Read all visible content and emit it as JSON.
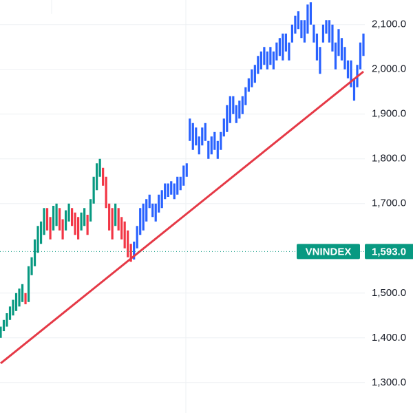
{
  "chart_data": {
    "type": "candlestick",
    "xlim": [
      0,
      117
    ],
    "ylim": [
      1232,
      2155
    ],
    "grid": true,
    "yticks": [
      {
        "value": 1300,
        "label": "1,300.0"
      },
      {
        "value": 1400,
        "label": "1,400.0"
      },
      {
        "value": 1500,
        "label": "1,500.0"
      },
      {
        "value": 1700,
        "label": "1,700.0"
      },
      {
        "value": 1800,
        "label": "1,800.0"
      },
      {
        "value": 1900,
        "label": "1,900.0"
      },
      {
        "value": 2000,
        "label": "2,000.0"
      },
      {
        "value": 2100,
        "label": "2,100.0"
      }
    ],
    "series": [
      {
        "color": "#089981",
        "x": [
          0,
          1,
          2,
          3,
          4,
          5,
          6,
          7,
          9,
          10,
          11,
          12,
          13,
          14,
          17,
          18,
          21,
          22,
          26,
          27,
          29,
          30,
          31,
          32,
          37
        ],
        "low": [
          1400,
          1415,
          1425,
          1440,
          1450,
          1460,
          1470,
          1480,
          1480,
          1540,
          1560,
          1590,
          1610,
          1630,
          1640,
          1650,
          1640,
          1660,
          1640,
          1650,
          1660,
          1700,
          1730,
          1760,
          1650
        ],
        "high": [
          1425,
          1440,
          1455,
          1470,
          1485,
          1500,
          1510,
          1520,
          1560,
          1580,
          1620,
          1650,
          1660,
          1690,
          1695,
          1700,
          1685,
          1700,
          1680,
          1690,
          1710,
          1760,
          1790,
          1800,
          1700
        ]
      },
      {
        "color": "#f23645",
        "x": [
          8,
          15,
          16,
          19,
          20,
          23,
          24,
          25,
          28,
          33,
          34,
          35,
          36,
          38,
          39,
          40,
          41,
          42
        ],
        "low": [
          1475,
          1640,
          1620,
          1640,
          1620,
          1650,
          1630,
          1620,
          1630,
          1740,
          1690,
          1640,
          1620,
          1640,
          1620,
          1600,
          1580,
          1570
        ],
        "high": [
          1500,
          1690,
          1670,
          1690,
          1665,
          1690,
          1680,
          1670,
          1675,
          1780,
          1760,
          1700,
          1690,
          1690,
          1670,
          1660,
          1640,
          1610
        ]
      },
      {
        "color": "#2962ff",
        "x": [
          43,
          44,
          45,
          46,
          47,
          48,
          49,
          50,
          51,
          52,
          53,
          54,
          55,
          56,
          57,
          58,
          59,
          60,
          61,
          62,
          63,
          64,
          65,
          66,
          67,
          68,
          69,
          70,
          71,
          72,
          73,
          74,
          75,
          76,
          77,
          78,
          79,
          80,
          81,
          82,
          83,
          84,
          85,
          86,
          87,
          88,
          89,
          90,
          91,
          92,
          93,
          94,
          95,
          96,
          97,
          98,
          99,
          100,
          101,
          102,
          103,
          104,
          105,
          106,
          107,
          108,
          109,
          110,
          111,
          112,
          113,
          114,
          115,
          116,
          117
        ],
        "low": [
          1575,
          1600,
          1630,
          1640,
          1660,
          1690,
          1670,
          1660,
          1680,
          1690,
          1710,
          1715,
          1720,
          1710,
          1720,
          1730,
          1740,
          1760,
          1840,
          1820,
          1830,
          1810,
          1830,
          1840,
          1800,
          1810,
          1820,
          1800,
          1820,
          1850,
          1860,
          1880,
          1900,
          1880,
          1890,
          1900,
          1920,
          1950,
          1960,
          1970,
          1990,
          2000,
          2010,
          2000,
          2010,
          2000,
          2020,
          2030,
          2020,
          2040,
          2020,
          2060,
          2080,
          2090,
          2070,
          2060,
          2080,
          2100,
          2060,
          2020,
          1990,
          2060,
          2080,
          2060,
          2040,
          2000,
          2030,
          2020,
          2000,
          1980,
          1960,
          1930,
          1960,
          2000,
          2030
        ],
        "high": [
          1615,
          1650,
          1690,
          1700,
          1710,
          1720,
          1700,
          1700,
          1720,
          1730,
          1745,
          1745,
          1750,
          1745,
          1760,
          1760,
          1785,
          1790,
          1890,
          1880,
          1870,
          1850,
          1870,
          1880,
          1840,
          1850,
          1860,
          1840,
          1860,
          1890,
          1920,
          1940,
          1940,
          1920,
          1930,
          1940,
          1960,
          1980,
          2000,
          2010,
          2030,
          2040,
          2050,
          2040,
          2050,
          2040,
          2060,
          2070,
          2080,
          2080,
          2060,
          2100,
          2120,
          2130,
          2110,
          2110,
          2145,
          2150,
          2100,
          2080,
          2050,
          2100,
          2110,
          2110,
          2100,
          2060,
          2090,
          2070,
          2050,
          2020,
          2020,
          1980,
          2010,
          2060,
          2080
        ]
      }
    ],
    "lines": [
      {
        "color": "#e53946",
        "x": [
          0,
          117
        ],
        "values": [
          1343,
          1995
        ]
      }
    ],
    "price_line": {
      "label": "VNINDEX",
      "value": 1593,
      "value_label": "1,593.0",
      "color": "#089981"
    }
  }
}
